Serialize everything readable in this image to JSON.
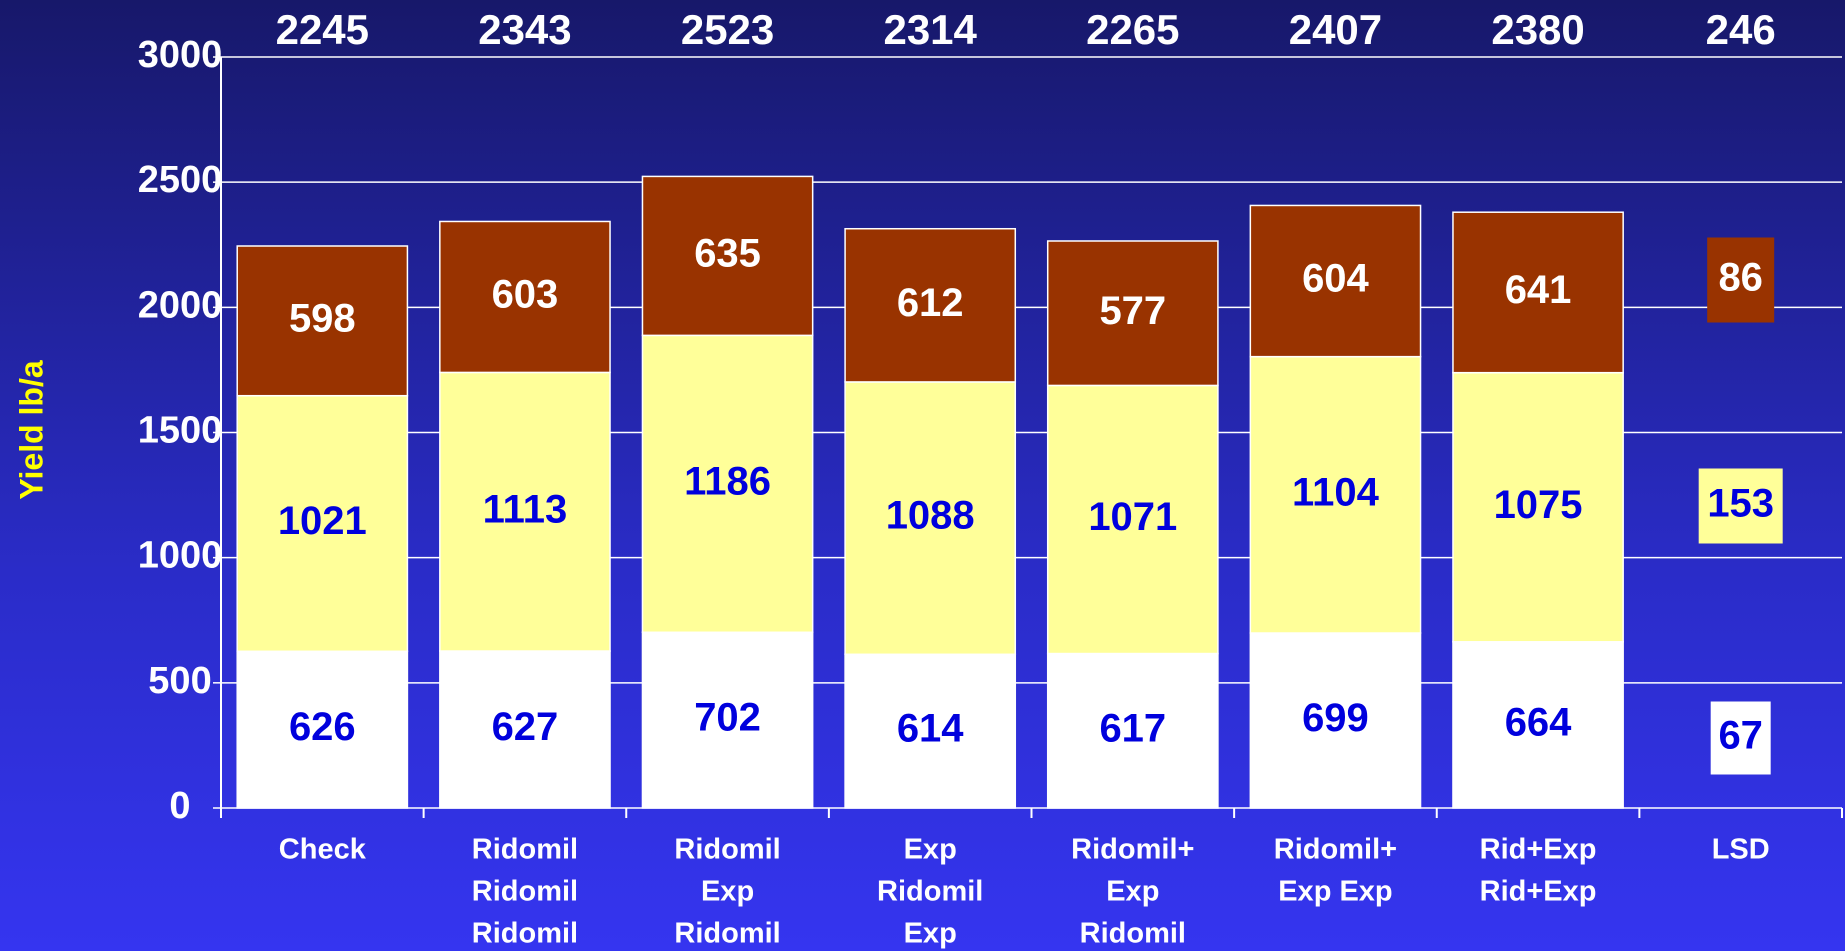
{
  "chart_data": {
    "type": "stacked-bar",
    "y_label": "Yield lb/a",
    "categories": [
      [
        "Check"
      ],
      [
        "Ridomil",
        "Ridomil",
        "Ridomil"
      ],
      [
        "Ridomil",
        "Exp",
        "Ridomil"
      ],
      [
        "Exp",
        "Ridomil",
        "Exp"
      ],
      [
        "Ridomil+",
        "Exp",
        "Ridomil"
      ],
      [
        "Ridomil+",
        "Exp Exp"
      ],
      [
        "Rid+Exp",
        "Rid+Exp"
      ]
    ],
    "series": [
      {
        "color": "#ffffff",
        "label_color": "#0000dd",
        "values": [
          626,
          627,
          702,
          614,
          617,
          699,
          664
        ]
      },
      {
        "color": "#ffff99",
        "label_color": "#0000dd",
        "values": [
          1021,
          1113,
          1186,
          1088,
          1071,
          1104,
          1075
        ]
      },
      {
        "color": "#993300",
        "label_color": "#ffffff",
        "values": [
          598,
          603,
          635,
          612,
          577,
          604,
          641
        ]
      }
    ],
    "totals": [
      2245,
      2343,
      2523,
      2314,
      2265,
      2407,
      2380
    ],
    "lsd": {
      "label": "LSD",
      "total": 246,
      "values": [
        67,
        153,
        86
      ]
    },
    "ylim": [
      0,
      3000
    ],
    "yticks": [
      0,
      500,
      1000,
      1500,
      2000,
      2500,
      3000
    ],
    "grid": true
  }
}
